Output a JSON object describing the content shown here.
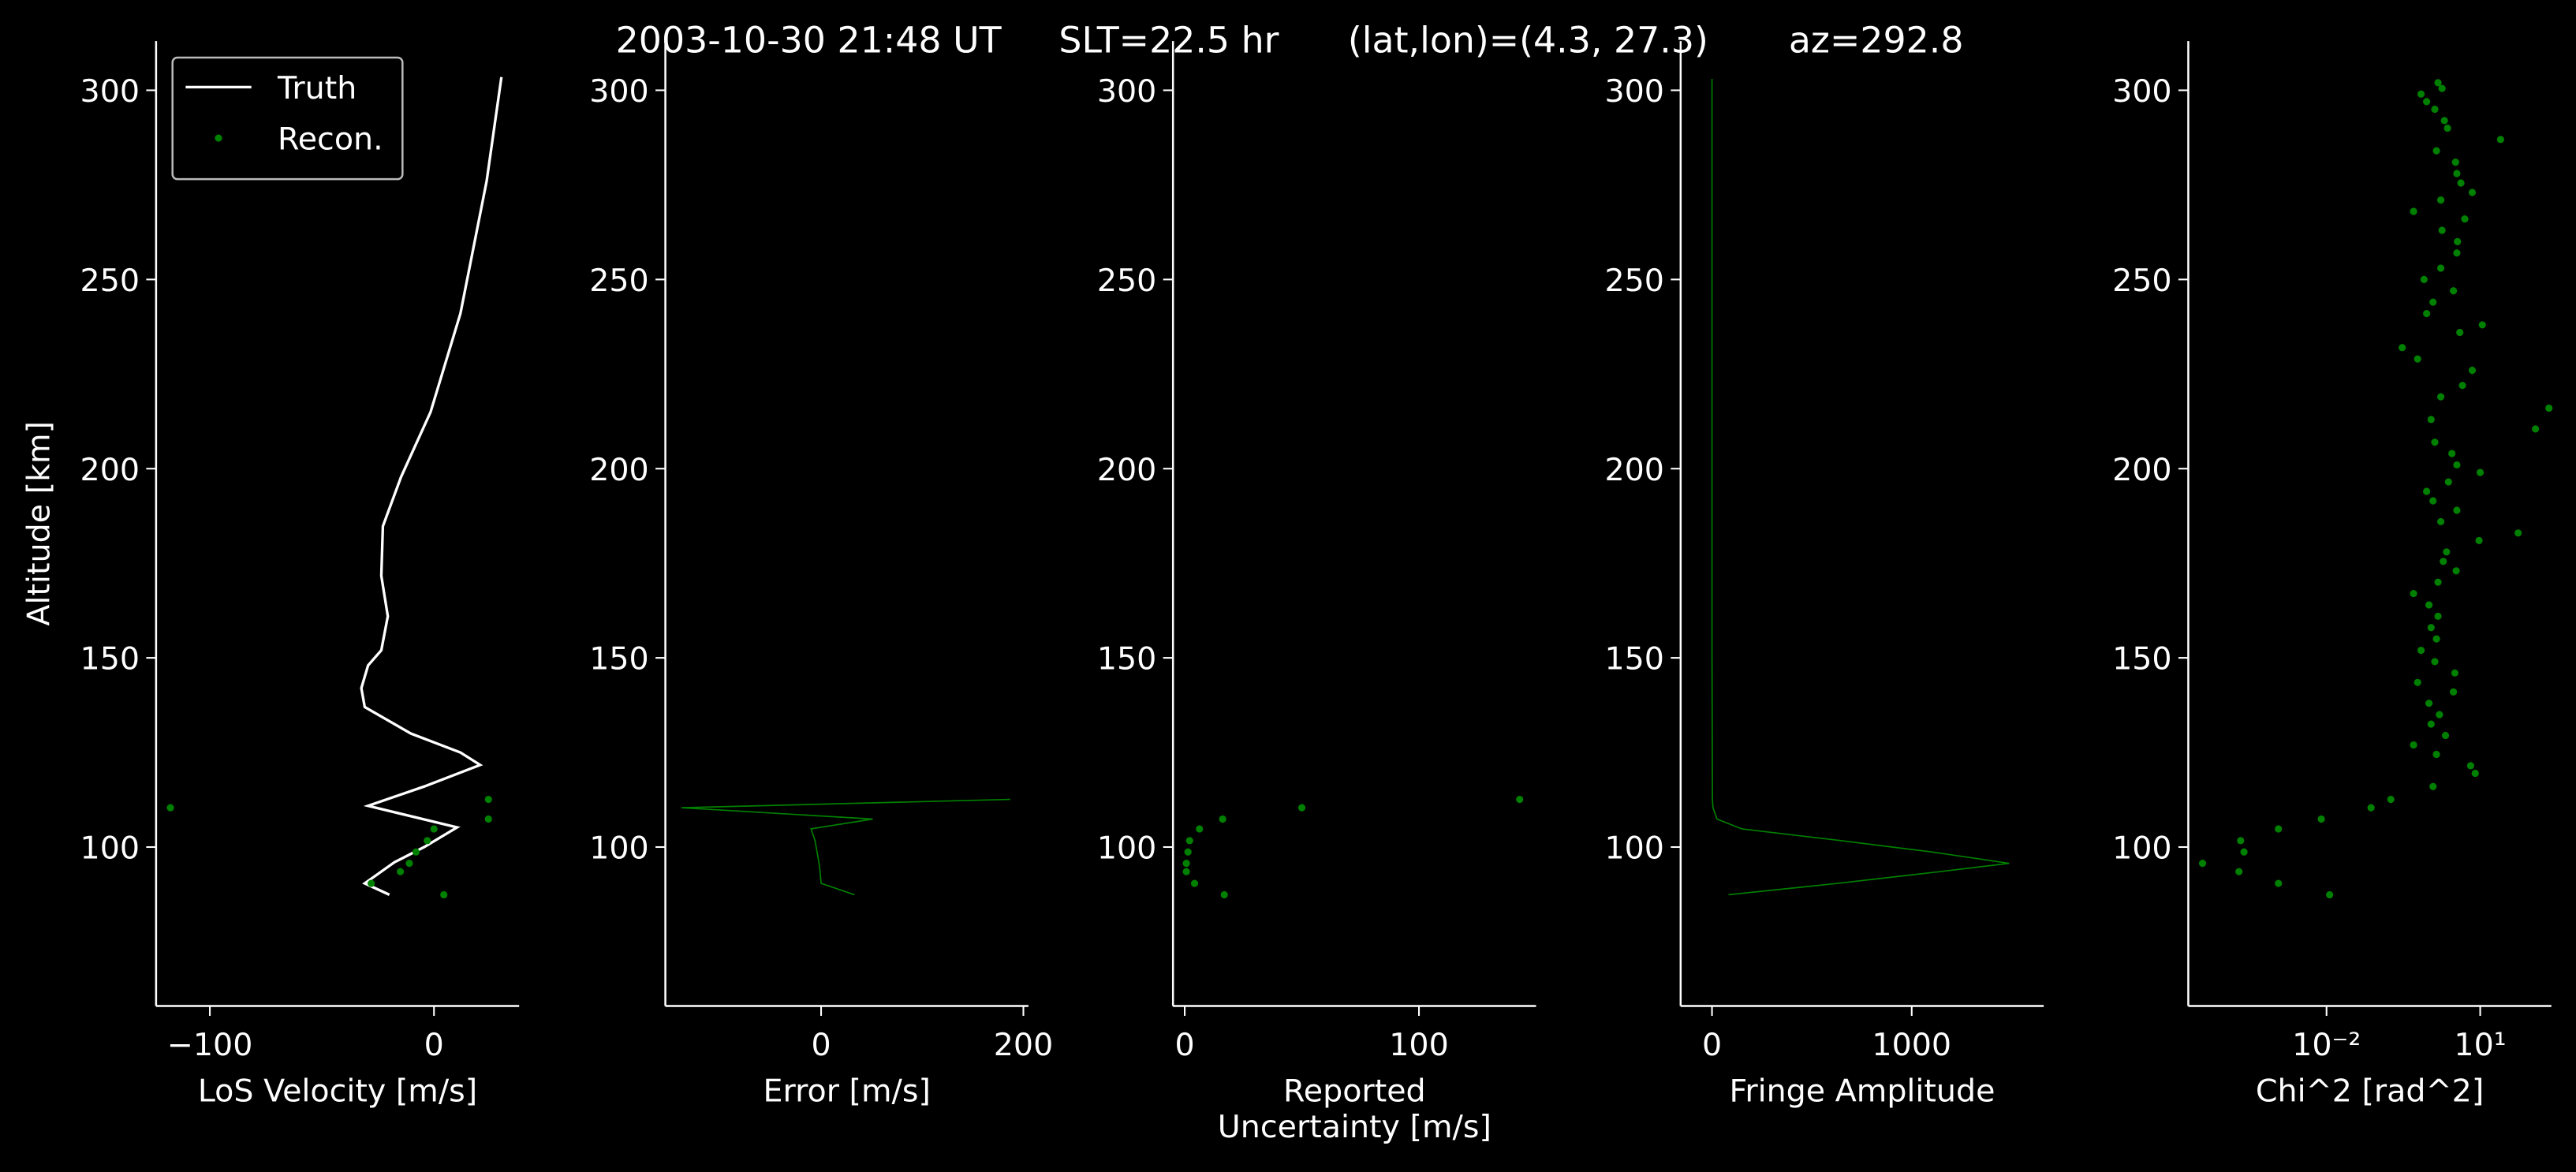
{
  "title": "2003-10-30 21:48 UT     SLT=22.5 hr      (lat,lon)=(4.3, 27.3)       az=292.8",
  "chart_data": [
    {
      "type": "line",
      "xlabel": [
        "LoS Velocity [m/s]"
      ],
      "ylabel": "Altitude [km]",
      "legend": "upper left",
      "xlim": [
        -124,
        38
      ],
      "xticks": [
        {
          "value": -100,
          "label": "−100"
        },
        0
      ],
      "ylim": [
        58,
        313
      ],
      "yticks": [
        100,
        150,
        200,
        250,
        300
      ],
      "series": [
        {
          "name": "Truth",
          "type": "line",
          "color": "#ffffff",
          "x": [
            -19.9,
            -30.9,
            -17.6,
            -4.4,
            10.3,
            -29.4,
            -4.4,
            20.6,
            11.8,
            -10.3,
            -30.9,
            -32.4,
            -29.4,
            -23.5,
            -20.6,
            -23.5,
            -22.8,
            -14.7,
            -1.5,
            11.8,
            23.5,
            30.1
          ],
          "y": [
            87.4,
            90.4,
            96,
            100,
            105.2,
            110.9,
            116,
            121.7,
            125,
            130,
            137,
            142,
            148,
            152,
            161,
            171.7,
            184.8,
            197.8,
            215,
            241,
            276,
            303.5
          ]
        },
        {
          "name": "Recon.",
          "type": "scatter",
          "color": "#008000",
          "x": [
            4.4,
            -28,
            -15,
            -11,
            -8,
            -3,
            0,
            24.3,
            -117.6,
            24.3
          ],
          "y": [
            87.4,
            90.4,
            93.5,
            95.7,
            98.7,
            101.7,
            104.8,
            107.4,
            110.4,
            112.6
          ]
        }
      ]
    },
    {
      "type": "line",
      "xlabel": [
        "Error [m/s]"
      ],
      "xlim": [
        -154,
        205
      ],
      "xticks": [
        0,
        200
      ],
      "ylim": [
        58,
        313
      ],
      "yticks": [
        100,
        150,
        200,
        250,
        300
      ],
      "series": [
        {
          "type": "line",
          "color": "#008000",
          "x": [
            33,
            0,
            -1,
            -2,
            -4,
            -6,
            -10,
            51,
            -138,
            187
          ],
          "y": [
            87.4,
            90.4,
            93.5,
            95.7,
            98.7,
            101.7,
            104.8,
            107.4,
            110.4,
            112.6
          ]
        }
      ]
    },
    {
      "type": "scatter",
      "xlabel": [
        "Reported",
        "Uncertainty [m/s]"
      ],
      "xlim": [
        -5,
        150
      ],
      "xticks": [
        0,
        100
      ],
      "ylim": [
        58,
        313
      ],
      "yticks": [
        100,
        150,
        200,
        250,
        300
      ],
      "series": [
        {
          "type": "scatter",
          "color": "#008000",
          "x": [
            16.9,
            4.2,
            0.7,
            0.7,
            1.4,
            2.1,
            6.3,
            16.2,
            50,
            143
          ],
          "y": [
            87.4,
            90.4,
            93.5,
            95.7,
            98.7,
            101.7,
            104.8,
            107.4,
            110.4,
            112.6
          ]
        }
      ]
    },
    {
      "type": "line",
      "xlabel": [
        "Fringe Amplitude"
      ],
      "xlim": [
        -157,
        1661
      ],
      "xticks": [
        0,
        1000
      ],
      "ylim": [
        58,
        313
      ],
      "yticks": [
        100,
        150,
        200,
        250,
        300
      ],
      "series": [
        {
          "type": "line",
          "color": "#008000",
          "x": [
            83,
            628,
            1140,
            1488,
            1100,
            645,
            149,
            25,
            5,
            2,
            0,
            0,
            0,
            0
          ],
          "y": [
            87.4,
            90.4,
            93.5,
            95.7,
            98.7,
            101.7,
            104.8,
            107.4,
            110.4,
            112.6,
            150,
            200,
            250,
            303
          ]
        }
      ]
    },
    {
      "type": "scatter",
      "xlabel": [
        "Chi^2 [rad^2]"
      ],
      "xscale": "log",
      "xlim": [
        2e-05,
        245
      ],
      "xticks": [
        {
          "value": 0.01,
          "label": "10⁻²"
        },
        {
          "value": 10,
          "label": "10¹"
        }
      ],
      "ylim": [
        58,
        313
      ],
      "yticks": [
        100,
        150,
        200,
        250,
        300
      ],
      "series": [
        {
          "type": "scatter",
          "color": "#008000",
          "x": [
            0.0115,
            0.00115,
            0.000195,
            3.8e-05,
            0.000245,
            0.00021,
            0.00115,
            0.0079,
            0.074,
            0.18,
            1.2,
            8,
            6.5,
            1.4,
            0.5,
            2.1,
            1.1,
            1.6,
            1.0,
            3.0,
            0.6,
            3.2,
            1.3,
            0.7,
            1.4,
            1.1,
            1.5,
            1.0,
            0.5,
            1.5,
            3.4,
            1.9,
            2.2,
            9.5,
            55,
            1.7,
            3.5,
            1.2,
            0.9,
            2.4,
            10,
            3.5,
            2.8,
            1.3,
            120,
            1.1,
            220,
            1.7,
            4.5,
            7.0,
            0.6,
            0.3,
            4.0,
            11,
            0.9,
            1.2,
            3.0,
            0.8,
            1.7,
            3.5,
            3.6,
            1.8,
            5.0,
            0.5,
            1.7,
            7.0,
            4.2,
            3.5,
            3.3,
            1.4,
            25,
            2.3,
            2.0,
            1.3,
            0.9,
            0.7,
            1.8,
            1.5
          ],
          "y": [
            87.4,
            90.4,
            93.5,
            95.7,
            98.7,
            101.7,
            104.8,
            107.4,
            110.4,
            112.6,
            116,
            119.5,
            121.5,
            124.5,
            127,
            129.5,
            132.5,
            135,
            138,
            141,
            143.5,
            146,
            149,
            152,
            155,
            158,
            161,
            164,
            167,
            170,
            173,
            175.5,
            178,
            181,
            183,
            186,
            189,
            191.5,
            194,
            196.5,
            199,
            201,
            204,
            207,
            210.5,
            213,
            216,
            219,
            222,
            226,
            229,
            232,
            236,
            238,
            241,
            244,
            247,
            250,
            253,
            257,
            260,
            263,
            266,
            268,
            271,
            273,
            275.5,
            278,
            281,
            284,
            287,
            290,
            292,
            295,
            297,
            299,
            300.5,
            302
          ]
        }
      ]
    }
  ]
}
